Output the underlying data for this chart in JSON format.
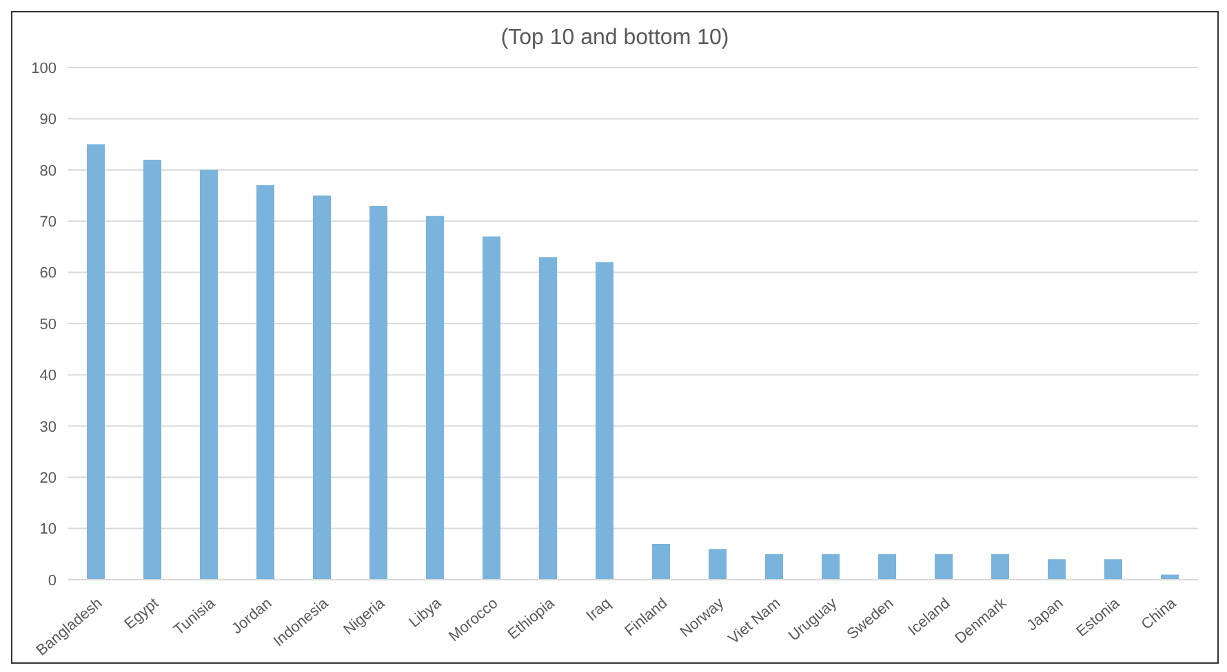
{
  "chart_data": {
    "type": "bar",
    "title": "(Top 10 and bottom 10)",
    "categories": [
      "Bangladesh",
      "Egypt",
      "Tunisia",
      "Jordan",
      "Indonesia",
      "Nigeria",
      "Libya",
      "Morocco",
      "Ethiopia",
      "Iraq",
      "Finland",
      "Norway",
      "Viet Nam",
      "Uruguay",
      "Sweden",
      "Iceland",
      "Denmark",
      "Japan",
      "Estonia",
      "China"
    ],
    "values": [
      85,
      82,
      80,
      77,
      75,
      73,
      71,
      67,
      63,
      62,
      7,
      6,
      5,
      5,
      5,
      5,
      5,
      4,
      4,
      1
    ],
    "color": "#7ab3dc",
    "ylim": [
      0,
      100
    ],
    "yticks": [
      0,
      10,
      20,
      30,
      40,
      50,
      60,
      70,
      80,
      90,
      100
    ],
    "grid": "y"
  }
}
